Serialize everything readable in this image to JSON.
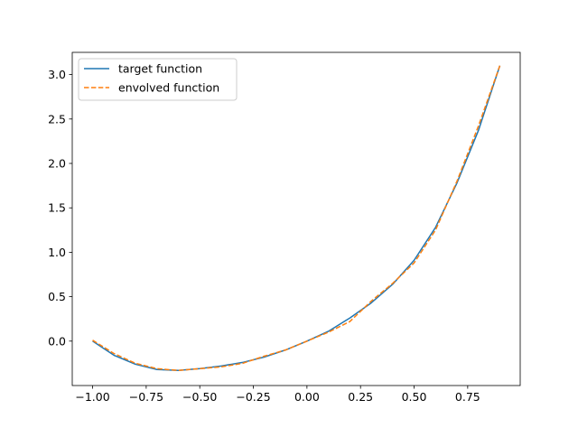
{
  "chart_data": {
    "type": "line",
    "title": "",
    "xlabel": "",
    "ylabel": "",
    "xlim": [
      -1.095,
      0.995
    ],
    "ylim": [
      -0.5,
      3.25
    ],
    "xticks": [
      -1.0,
      -0.75,
      -0.5,
      -0.25,
      0.0,
      0.25,
      0.5,
      0.75
    ],
    "xtick_labels": [
      "−1.00",
      "−0.75",
      "−0.50",
      "−0.25",
      "0.00",
      "0.25",
      "0.50",
      "0.75"
    ],
    "yticks": [
      0.0,
      0.5,
      1.0,
      1.5,
      2.0,
      2.5,
      3.0
    ],
    "ytick_labels": [
      "0.0",
      "0.5",
      "1.0",
      "1.5",
      "2.0",
      "2.5",
      "3.0"
    ],
    "grid": false,
    "legend": "top-left",
    "series": [
      {
        "name": "target function",
        "color": "#1f77b4",
        "style": "solid",
        "x": [
          -1.0,
          -0.9,
          -0.8,
          -0.7,
          -0.6,
          -0.5,
          -0.4,
          -0.3,
          -0.2,
          -0.1,
          0.0,
          0.1,
          0.2,
          0.3,
          0.4,
          0.5,
          0.6,
          0.7,
          0.8,
          0.9
        ],
        "y": [
          0.0,
          -0.16,
          -0.26,
          -0.32,
          -0.33,
          -0.31,
          -0.28,
          -0.24,
          -0.18,
          -0.1,
          0.0,
          0.11,
          0.26,
          0.43,
          0.64,
          0.91,
          1.28,
          1.78,
          2.37,
          3.1
        ]
      },
      {
        "name": "envolved function",
        "color": "#ff7f0e",
        "style": "dashed",
        "x": [
          -1.0,
          -0.9,
          -0.8,
          -0.7,
          -0.6,
          -0.5,
          -0.4,
          -0.3,
          -0.2,
          -0.1,
          0.0,
          0.1,
          0.2,
          0.3,
          0.4,
          0.5,
          0.6,
          0.7,
          0.8,
          0.9
        ],
        "y": [
          0.01,
          -0.14,
          -0.25,
          -0.31,
          -0.33,
          -0.31,
          -0.29,
          -0.25,
          -0.17,
          -0.1,
          0.0,
          0.1,
          0.22,
          0.45,
          0.65,
          0.88,
          1.25,
          1.8,
          2.42,
          3.1
        ]
      }
    ]
  }
}
